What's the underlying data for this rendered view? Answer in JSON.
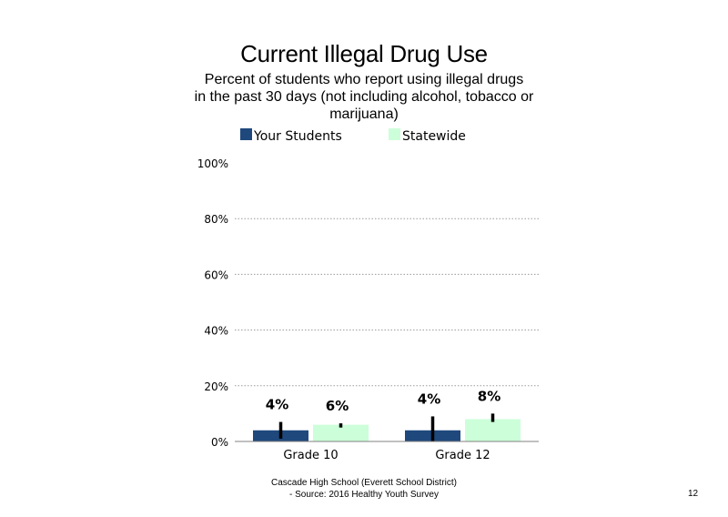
{
  "slide": {
    "footer_line1": "Cascade High School (Everett School District)",
    "footer_line2": "- Source: 2016 Healthy  Youth Survey",
    "page_number": "12"
  },
  "chart_data": {
    "type": "bar",
    "title": "Current Illegal Drug Use",
    "subtitle_lines": [
      "Percent of students who report using illegal drugs",
      "in the past 30 days (not including alcohol, tobacco or",
      "marijuana)"
    ],
    "categories": [
      "Grade 10",
      "Grade 12"
    ],
    "series": [
      {
        "name": "Your Students",
        "color": "#1f497d",
        "values": [
          4,
          4
        ],
        "labels": [
          "4%",
          "4%"
        ],
        "error_bars": [
          [
            1,
            7
          ],
          [
            0,
            9
          ]
        ]
      },
      {
        "name": "Statewide",
        "color": "#ccffd9",
        "values": [
          6,
          8
        ],
        "labels": [
          "6%",
          "8%"
        ],
        "error_bars": [
          [
            5,
            6.5
          ],
          [
            7,
            10
          ]
        ]
      }
    ],
    "ylim": [
      0,
      100
    ],
    "yticks": [
      0,
      20,
      40,
      60,
      80,
      100
    ],
    "ytick_labels": [
      "0%",
      "20%",
      "40%",
      "60%",
      "80%",
      "100%"
    ],
    "grid": true,
    "legend_position": "top"
  }
}
